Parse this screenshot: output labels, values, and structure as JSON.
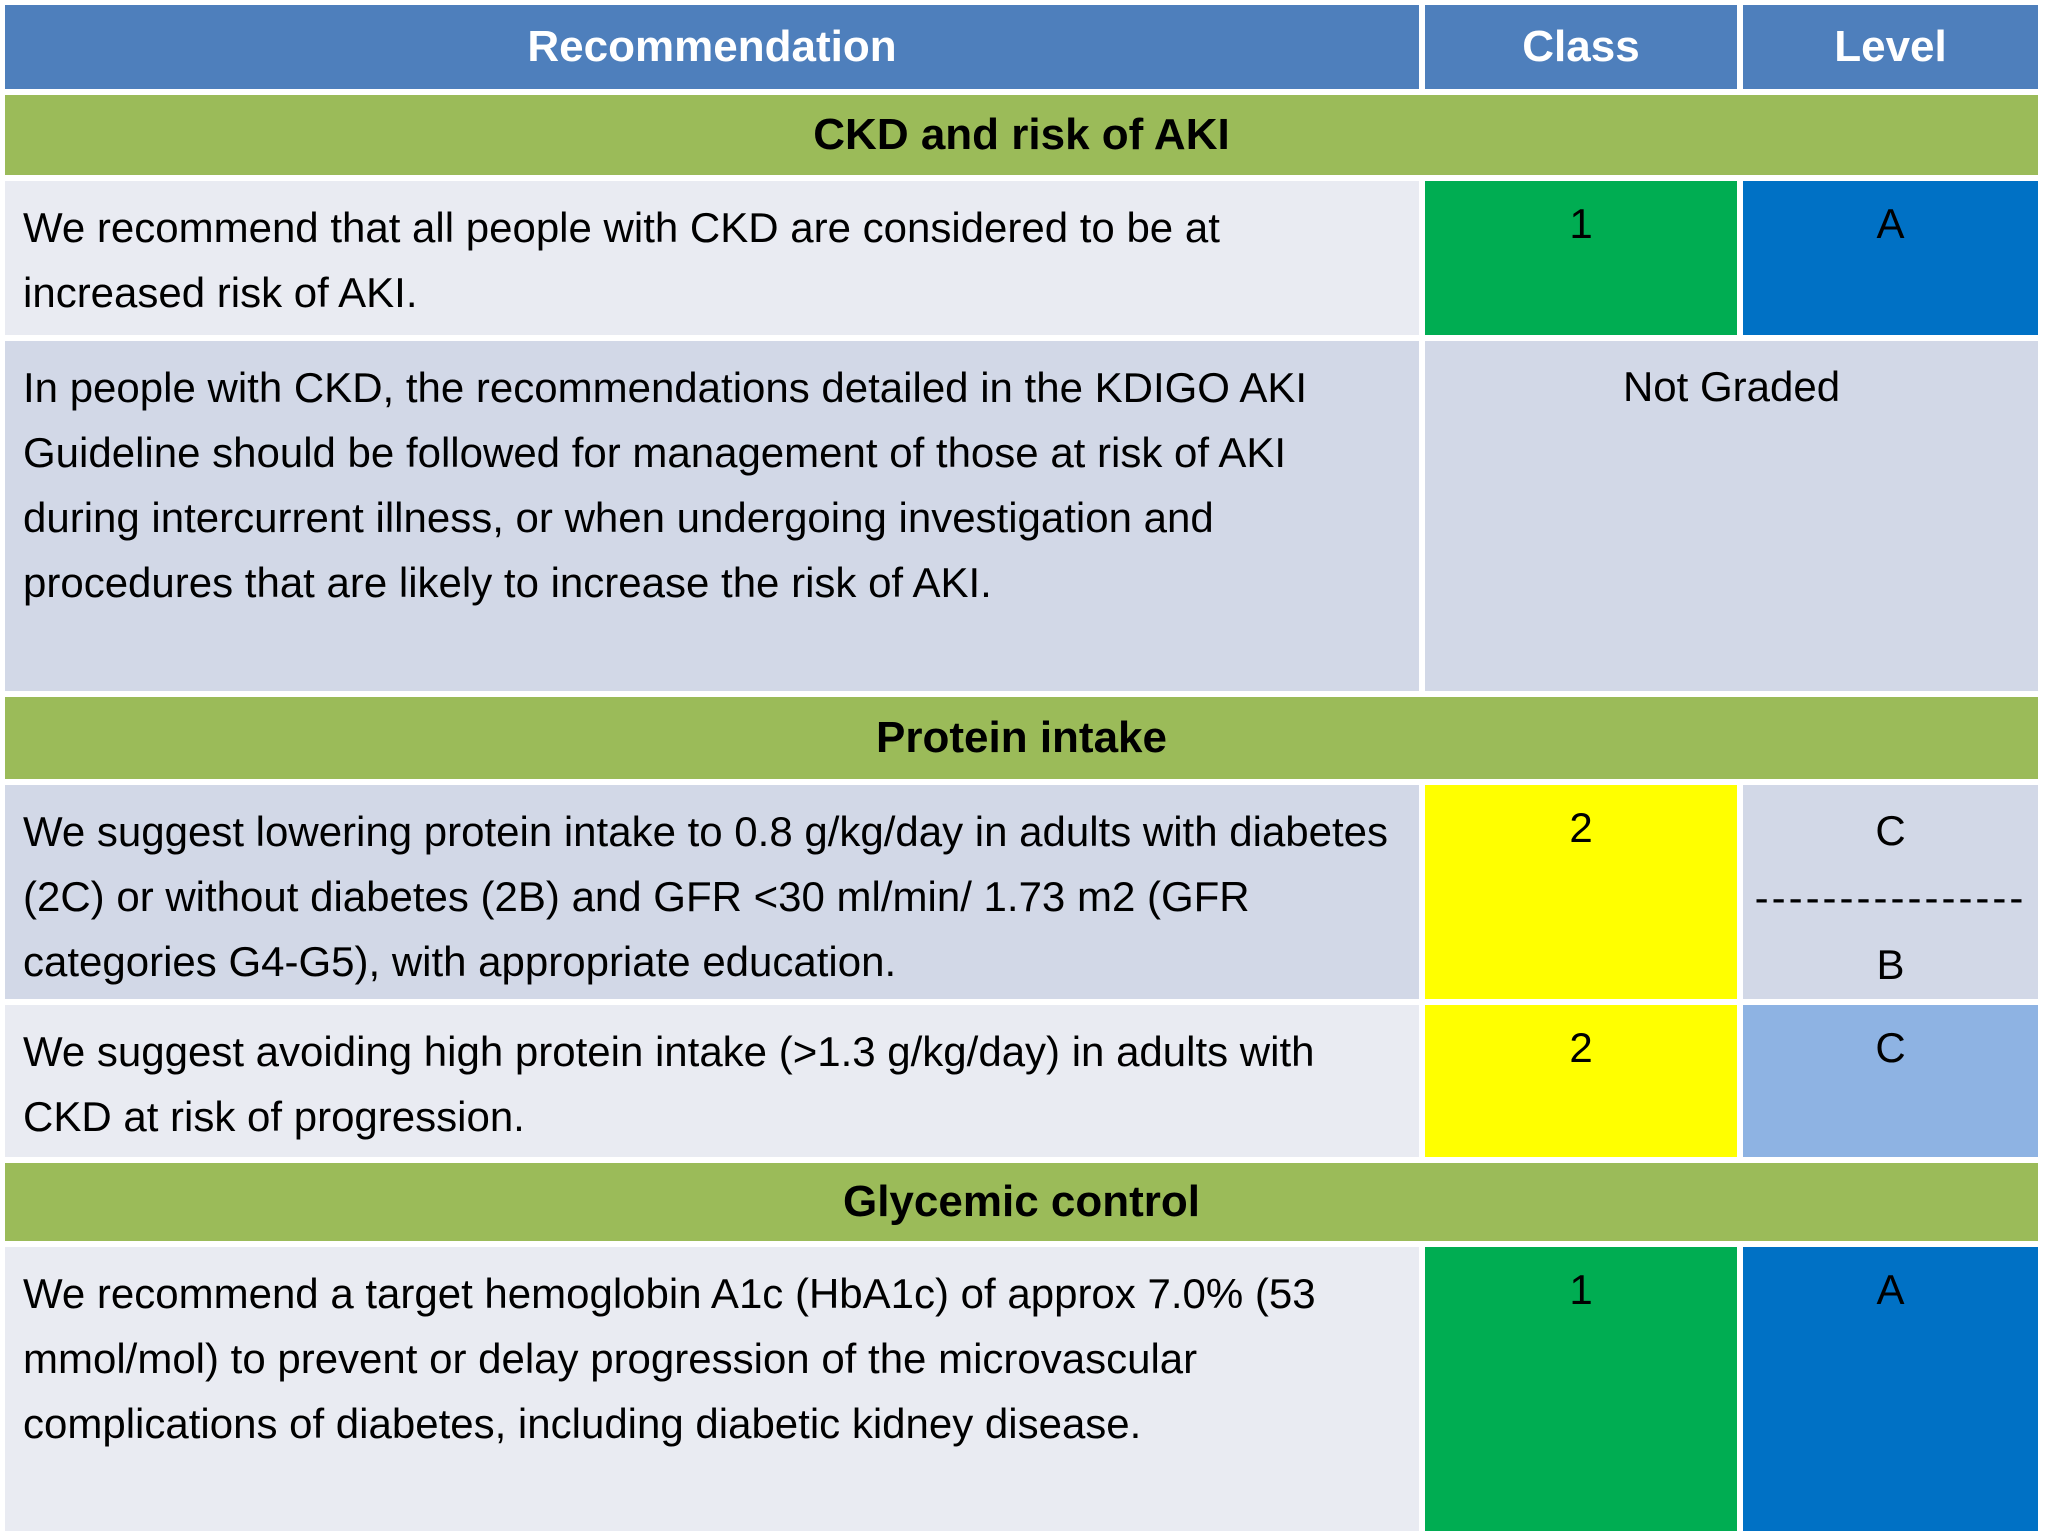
{
  "colors": {
    "header_bg": "#4E7FBC",
    "header_text": "#FFFFFF",
    "section_bg": "#9BBB59",
    "row_light": "#E9EBF2",
    "row_lavender": "#D2D8E7",
    "class_green": "#00AD52",
    "class_yellow": "#FFFF00",
    "level_blue": "#0071C5",
    "level_light_blue": "#8EB3E3",
    "text_color": "#000000"
  },
  "table": {
    "header": {
      "recommendation": "Recommendation",
      "class": "Class",
      "level": "Level"
    },
    "sections": [
      {
        "title": "CKD and risk of AKI",
        "rows": [
          {
            "text": "We recommend that all people with CKD are considered to be at increased risk of AKI.",
            "class": "1",
            "level": "A"
          },
          {
            "text": "In people with CKD, the recommendations detailed in the KDIGO AKI Guideline should be followed for management of those at risk of AKI during intercurrent illness, or when undergoing investigation and procedures that are likely to increase the risk of AKI.",
            "grade": "Not Graded"
          }
        ]
      },
      {
        "title": "Protein intake",
        "rows": [
          {
            "text": "We suggest lowering protein intake to 0.8 g/kg/day in adults with diabetes (2C) or without diabetes (2B) and GFR <30 ml/min/ 1.73 m2 (GFR categories G4-G5), with appropriate education.",
            "class": "2",
            "level_top": "C",
            "level_divider": "----------------",
            "level_bottom": "B"
          },
          {
            "text": "We suggest avoiding high protein intake (>1.3 g/kg/day) in adults with CKD at risk of progression.",
            "class": "2",
            "level": "C"
          }
        ]
      },
      {
        "title": "Glycemic control",
        "rows": [
          {
            "text": "We recommend a target hemoglobin A1c (HbA1c) of approx 7.0% (53 mmol/mol) to prevent or delay progression of the microvascular complications of diabetes, including diabetic kidney disease.",
            "class": "1",
            "level": "A"
          }
        ]
      }
    ]
  }
}
